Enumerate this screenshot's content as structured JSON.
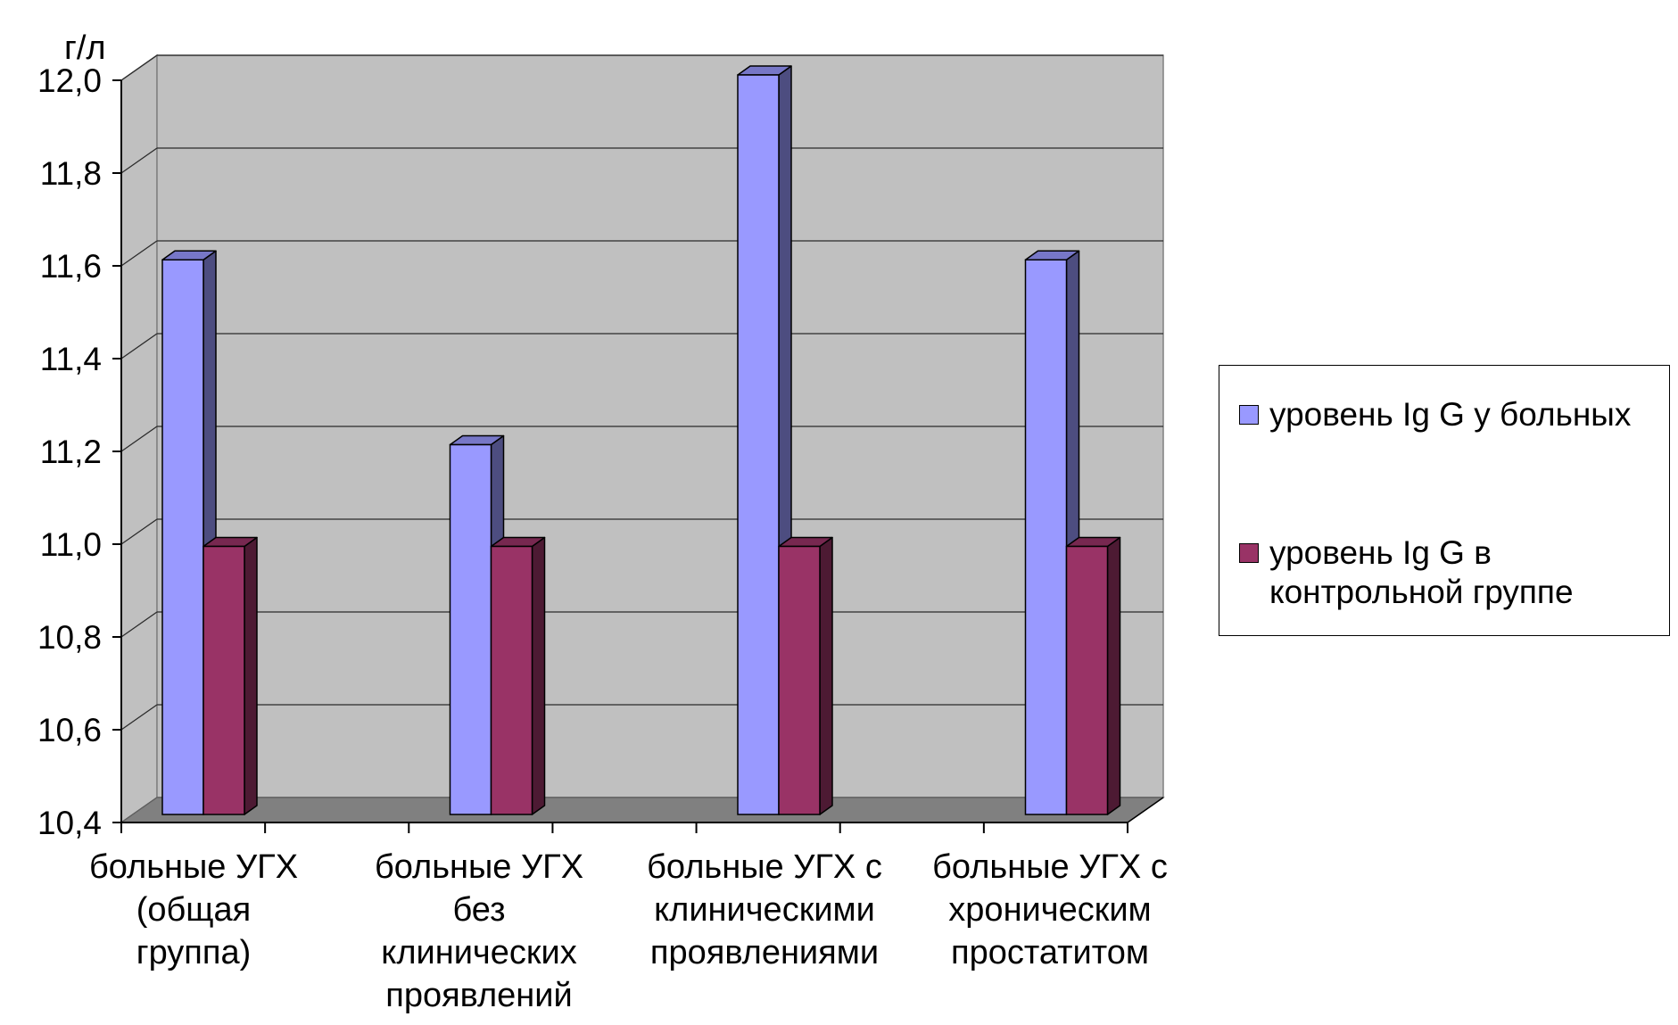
{
  "chart_data": {
    "type": "bar",
    "style": "3d clustered column",
    "ylabel": "г/л",
    "xlabel": "",
    "ylim": [
      10.4,
      12.0
    ],
    "yticks": [
      10.4,
      10.6,
      10.8,
      11.0,
      11.2,
      11.4,
      11.6,
      11.8,
      12.0
    ],
    "ytick_labels": [
      "10,4",
      "10,6",
      "10,8",
      "11,0",
      "11,2",
      "11,4",
      "11,6",
      "11,8",
      "12,0"
    ],
    "categories": [
      [
        "больные УГХ",
        "(общая",
        "группа)"
      ],
      [
        "больные УГХ",
        "без",
        "клинических",
        "проявлений"
      ],
      [
        "больные УГХ с",
        "клиническими",
        "проявлениями"
      ],
      [
        "больные УГХ с",
        "хроническим",
        "простатитом"
      ]
    ],
    "series": [
      {
        "name": "уровень Ig G у больных",
        "values": [
          11.6,
          11.2,
          12.0,
          11.6
        ],
        "color": "#9999ff"
      },
      {
        "name": "уровень Ig G в контрольной группе",
        "values": [
          10.98,
          10.98,
          10.98,
          10.98
        ],
        "color": "#993366"
      }
    ],
    "legend": "right",
    "grid": true,
    "colors": {
      "wall": "#c0c0c0",
      "floor": "#808080",
      "gridline": "#2b2b2b"
    }
  }
}
